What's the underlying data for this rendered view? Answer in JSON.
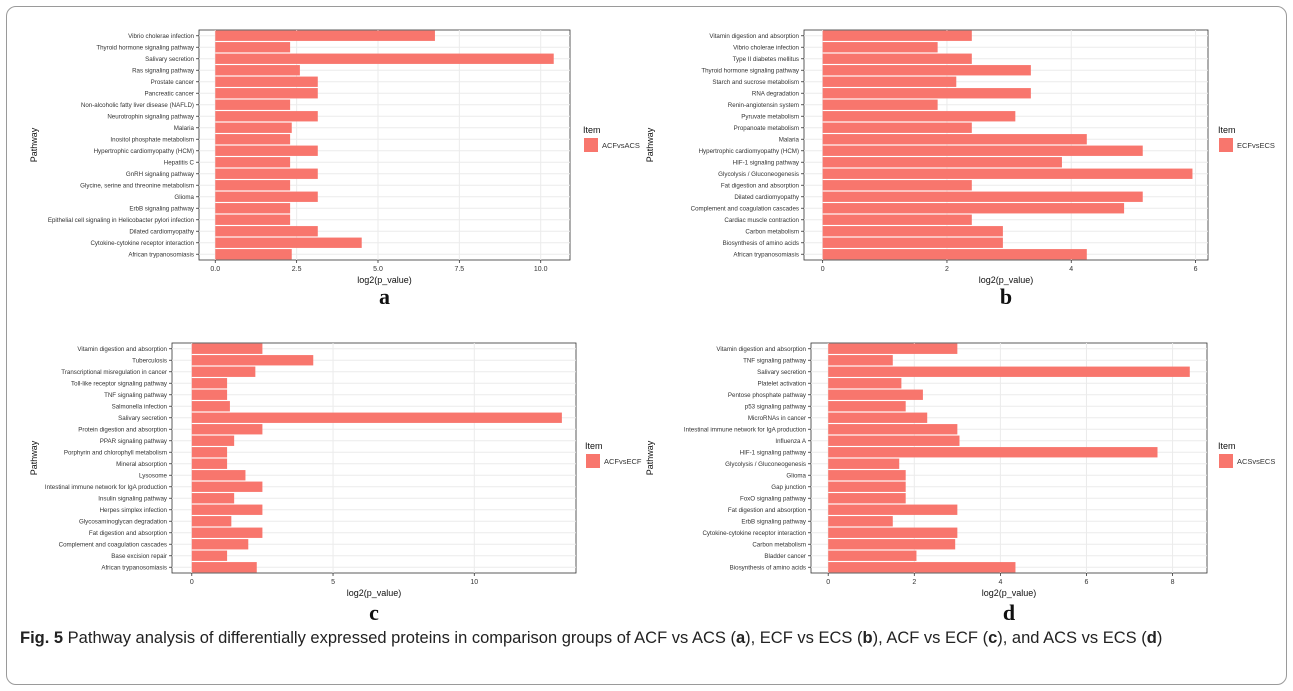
{
  "caption": {
    "label": "Fig. 5",
    "segments": [
      {
        "t": "  Pathway analysis of differentially expressed proteins in comparison groups of ACF vs ACS (",
        "b": false
      },
      {
        "t": "a",
        "b": true
      },
      {
        "t": "), ECF vs ECS (",
        "b": false
      },
      {
        "t": "b",
        "b": true
      },
      {
        "t": "), ACF vs ECF (",
        "b": false
      },
      {
        "t": "c",
        "b": true
      },
      {
        "t": "), and ACS vs ECS (",
        "b": false
      },
      {
        "t": "d",
        "b": true
      },
      {
        "t": ")",
        "b": false
      }
    ]
  },
  "colors": {
    "bar": "#f8766d",
    "panel": "#ffffff",
    "grid": "#ebebeb",
    "text": "#333333"
  },
  "chart_data": [
    {
      "type": "bar",
      "orientation": "horizontal",
      "panel_label": "a",
      "xlabel": "log2(p_value)",
      "ylabel": "Pathway",
      "legend_title": "Item",
      "legend_entry": "ACFvsACS",
      "legend_position": "right",
      "grid": true,
      "xlim": [
        -0.5,
        10.9
      ],
      "xticks": [
        0.0,
        2.5,
        5.0,
        7.5,
        10.0
      ],
      "xtick_labels": [
        "0.0",
        "2.5",
        "5.0",
        "7.5",
        "10.0"
      ],
      "categories": [
        "Vibrio cholerae infection",
        "Thyroid hormone signaling pathway",
        "Salivary secretion",
        "Ras signaling pathway",
        "Prostate cancer",
        "Pancreatic cancer",
        "Non-alcoholic fatty liver disease (NAFLD)",
        "Neurotrophin signaling pathway",
        "Malaria",
        "Inositol phosphate metabolism",
        "Hypertrophic cardiomyopathy (HCM)",
        "Hepatitis C",
        "GnRH signaling pathway",
        "Glycine, serine and threonine metabolism",
        "Glioma",
        "ErbB signaling pathway",
        "Epithelial cell signaling in Helicobacter pylori infection",
        "Dilated cardiomyopathy",
        "Cytokine-cytokine receptor interaction",
        "African trypanosomiasis"
      ],
      "values": [
        6.75,
        2.3,
        10.4,
        2.6,
        3.15,
        3.15,
        2.3,
        3.15,
        2.35,
        2.3,
        3.15,
        2.3,
        3.15,
        2.3,
        3.15,
        2.3,
        2.3,
        3.15,
        4.5,
        2.35
      ]
    },
    {
      "type": "bar",
      "orientation": "horizontal",
      "panel_label": "b",
      "xlabel": "log2(p_value)",
      "ylabel": "Pathway",
      "legend_title": "Item",
      "legend_entry": "ECFvsECS",
      "legend_position": "right",
      "grid": true,
      "xlim": [
        -0.3,
        6.2
      ],
      "xticks": [
        0,
        2,
        4,
        6
      ],
      "xtick_labels": [
        "0",
        "2",
        "4",
        "6"
      ],
      "categories": [
        "Vitamin digestion and absorption",
        "Vibrio cholerae infection",
        "Type II diabetes mellitus",
        "Thyroid hormone signaling pathway",
        "Starch and sucrose metabolism",
        "RNA degradation",
        "Renin-angiotensin system",
        "Pyruvate metabolism",
        "Propanoate metabolism",
        "Malaria",
        "Hypertrophic cardiomyopathy (HCM)",
        "HIF-1 signaling pathway",
        "Glycolysis / Gluconeogenesis",
        "Fat digestion and absorption",
        "Dilated cardiomyopathy",
        "Complement and coagulation cascades",
        "Cardiac muscle contraction",
        "Carbon metabolism",
        "Biosynthesis of amino acids",
        "African trypanosomiasis"
      ],
      "values": [
        2.4,
        1.85,
        2.4,
        3.35,
        2.15,
        3.35,
        1.85,
        3.1,
        2.4,
        4.25,
        5.15,
        3.85,
        5.95,
        2.4,
        5.15,
        4.85,
        2.4,
        2.9,
        2.9,
        4.25
      ]
    },
    {
      "type": "bar",
      "orientation": "horizontal",
      "panel_label": "c",
      "xlabel": "log2(p_value)",
      "ylabel": "Pathway",
      "legend_title": "Item",
      "legend_entry": "ACFvsECF",
      "legend_position": "right",
      "grid": true,
      "xlim": [
        -0.7,
        13.6
      ],
      "xticks": [
        0,
        5,
        10
      ],
      "xtick_labels": [
        "0",
        "5",
        "10"
      ],
      "categories": [
        "Vitamin digestion and absorption",
        "Tuberculosis",
        "Transcriptional misregulation in cancer",
        "Toll-like receptor signaling pathway",
        "TNF signaling pathway",
        "Salmonella infection",
        "Salivary secretion",
        "Protein digestion and absorption",
        "PPAR signaling pathway",
        "Porphyrin and chlorophyll metabolism",
        "Mineral absorption",
        "Lysosome",
        "Intestinal immune network for IgA production",
        "Insulin signaling pathway",
        "Herpes simplex infection",
        "Glycosaminoglycan degradation",
        "Fat digestion and absorption",
        "Complement and coagulation cascades",
        "Base excision repair",
        "African trypanosomiasis"
      ],
      "values": [
        2.5,
        4.3,
        2.25,
        1.25,
        1.25,
        1.35,
        13.1,
        2.5,
        1.5,
        1.25,
        1.25,
        1.9,
        2.5,
        1.5,
        2.5,
        1.4,
        2.5,
        2.0,
        1.25,
        2.3
      ]
    },
    {
      "type": "bar",
      "orientation": "horizontal",
      "panel_label": "d",
      "xlabel": "log2(p_value)",
      "ylabel": "Pathway",
      "legend_title": "Item",
      "legend_entry": "ACSvsECS",
      "legend_position": "right",
      "grid": true,
      "xlim": [
        -0.4,
        8.8
      ],
      "xticks": [
        0,
        2,
        4,
        6,
        8
      ],
      "xtick_labels": [
        "0",
        "2",
        "4",
        "6",
        "8"
      ],
      "categories": [
        "Vitamin digestion and absorption",
        "TNF signaling pathway",
        "Salivary secretion",
        "Platelet activation",
        "Pentose phosphate pathway",
        "p53 signaling pathway",
        "MicroRNAs in cancer",
        "Intestinal immune network for IgA production",
        "Influenza A",
        "HIF-1 signaling pathway",
        "Glycolysis / Gluconeogenesis",
        "Glioma",
        "Gap junction",
        "FoxO signaling pathway",
        "Fat digestion and absorption",
        "ErbB signaling pathway",
        "Cytokine-cytokine receptor interaction",
        "Carbon metabolism",
        "Bladder cancer",
        "Biosynthesis of amino acids"
      ],
      "values": [
        3.0,
        1.5,
        8.4,
        1.7,
        2.2,
        1.8,
        2.3,
        3.0,
        3.05,
        7.65,
        1.65,
        1.8,
        1.8,
        1.8,
        3.0,
        1.5,
        3.0,
        2.95,
        2.05,
        4.35
      ]
    }
  ]
}
